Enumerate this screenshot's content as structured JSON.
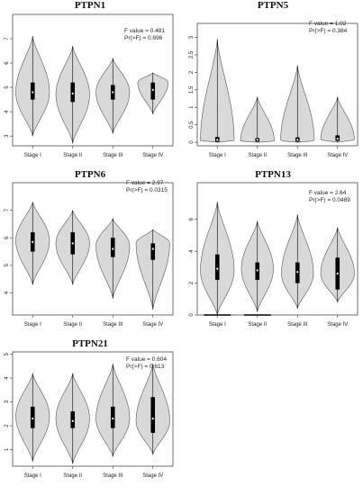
{
  "charts": [
    {
      "type": "violin",
      "title": "PTPN1",
      "stat_f": "F value = 0.481",
      "stat_p": "Pr(>F) = 0.696",
      "categories": [
        "Stage I",
        "Stage II",
        "Stage III",
        "Stage IV"
      ],
      "ylim": [
        2.6,
        8.0
      ],
      "yticks": [
        3,
        4,
        5,
        6,
        7
      ],
      "groups": [
        {
          "min": 3.0,
          "max": 7.1,
          "q1": 4.5,
          "median": 4.8,
          "q3": 5.2,
          "mode": 4.8,
          "width": 1.0
        },
        {
          "min": 2.7,
          "max": 6.7,
          "q1": 4.4,
          "median": 4.75,
          "q3": 5.2,
          "mode": 4.7,
          "width": 1.0
        },
        {
          "min": 3.1,
          "max": 6.2,
          "q1": 4.5,
          "median": 4.8,
          "q3": 5.1,
          "mode": 4.8,
          "width": 1.0
        },
        {
          "min": 3.9,
          "max": 5.6,
          "q1": 4.5,
          "median": 4.9,
          "q3": 5.2,
          "mode": 5.2,
          "width": 0.9
        }
      ]
    },
    {
      "type": "violin",
      "title": "PTPN5",
      "stat_f": "F value = 1.02",
      "stat_p": "Pr(>F) = 0.384",
      "categories": [
        "Stage I",
        "Stage II",
        "Stage III",
        "Stage IV"
      ],
      "ylim": [
        -0.1,
        3.4
      ],
      "yticks": [
        0.0,
        0.5,
        1.0,
        1.5,
        2.0,
        2.5,
        3.0
      ],
      "groups": [
        {
          "min": 0.0,
          "max": 2.95,
          "q1": 0.02,
          "median": 0.07,
          "q3": 0.15,
          "mode": 0.04,
          "width": 1.0
        },
        {
          "min": 0.0,
          "max": 1.3,
          "q1": 0.02,
          "median": 0.07,
          "q3": 0.12,
          "mode": 0.04,
          "width": 1.0
        },
        {
          "min": 0.0,
          "max": 2.2,
          "q1": 0.02,
          "median": 0.07,
          "q3": 0.14,
          "mode": 0.05,
          "width": 1.0
        },
        {
          "min": 0.0,
          "max": 1.3,
          "q1": 0.04,
          "median": 0.1,
          "q3": 0.2,
          "mode": 0.08,
          "width": 1.0
        }
      ]
    },
    {
      "type": "violin",
      "title": "PTPN6",
      "stat_f": "F value = 2.97",
      "stat_p": "Pr(>F) = 0.0315",
      "categories": [
        "Stage I",
        "Stage II",
        "Stage III",
        "Stage IV"
      ],
      "ylim": [
        3.2,
        8.0
      ],
      "yticks": [
        4,
        5,
        6,
        7
      ],
      "groups": [
        {
          "min": 4.3,
          "max": 7.3,
          "q1": 5.5,
          "median": 5.85,
          "q3": 6.2,
          "mode": 5.9,
          "width": 1.0
        },
        {
          "min": 4.3,
          "max": 7.0,
          "q1": 5.4,
          "median": 5.8,
          "q3": 6.2,
          "mode": 5.8,
          "width": 1.0
        },
        {
          "min": 3.8,
          "max": 6.7,
          "q1": 5.3,
          "median": 5.6,
          "q3": 6.0,
          "mode": 5.7,
          "width": 1.0
        },
        {
          "min": 3.4,
          "max": 6.3,
          "q1": 5.2,
          "median": 5.6,
          "q3": 5.8,
          "mode": 5.8,
          "width": 1.0
        }
      ]
    },
    {
      "type": "violin",
      "title": "PTPN13",
      "stat_f": "F value = 2.64",
      "stat_p": "Pr(>F) = 0.0489",
      "categories": [
        "Stage I",
        "Stage II",
        "Stage III",
        "Stage IV"
      ],
      "ylim": [
        0.0,
        8.3
      ],
      "yticks": [
        0,
        2,
        4,
        6
      ],
      "groups": [
        {
          "min": 0.0,
          "max": 7.1,
          "q1": 2.2,
          "median": 2.9,
          "q3": 3.8,
          "mode": 2.8,
          "width": 1.0,
          "zero_tail": true
        },
        {
          "min": 0.2,
          "max": 5.9,
          "q1": 2.2,
          "median": 2.8,
          "q3": 3.3,
          "mode": 2.9,
          "width": 0.95,
          "zero_tail": true
        },
        {
          "min": 0.4,
          "max": 6.3,
          "q1": 2.0,
          "median": 2.7,
          "q3": 3.3,
          "mode": 2.6,
          "width": 0.95
        },
        {
          "min": 0.8,
          "max": 5.5,
          "q1": 1.6,
          "median": 2.6,
          "q3": 3.6,
          "mode": 2.6,
          "width": 1.0
        }
      ]
    },
    {
      "type": "violin",
      "title": "PTPN21",
      "stat_f": "F value = 0.604",
      "stat_p": "Pr(>F) = 0.613",
      "categories": [
        "Stage I",
        "Stage II",
        "Stage III",
        "Stage IV"
      ],
      "ylim": [
        0.3,
        5.1
      ],
      "yticks": [
        1,
        2,
        3,
        4,
        5
      ],
      "groups": [
        {
          "min": 0.5,
          "max": 4.2,
          "q1": 1.9,
          "median": 2.3,
          "q3": 2.8,
          "mode": 2.4,
          "width": 1.0
        },
        {
          "min": 0.4,
          "max": 4.2,
          "q1": 1.9,
          "median": 2.2,
          "q3": 2.6,
          "mode": 2.3,
          "width": 1.0
        },
        {
          "min": 0.7,
          "max": 4.6,
          "q1": 1.9,
          "median": 2.3,
          "q3": 2.8,
          "mode": 2.3,
          "width": 1.0
        },
        {
          "min": 0.8,
          "max": 4.6,
          "q1": 1.7,
          "median": 2.3,
          "q3": 3.2,
          "mode": 2.2,
          "width": 1.0
        }
      ]
    }
  ]
}
